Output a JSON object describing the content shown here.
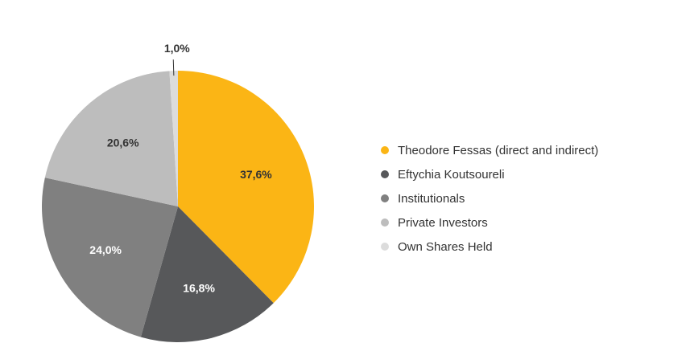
{
  "chart_data": {
    "type": "pie",
    "title": "",
    "slices": [
      {
        "label": "Theodore Fessas (direct and indirect)",
        "value": 37.6,
        "value_label": "37,6%",
        "color": "#fbb515",
        "label_color": "#333333"
      },
      {
        "label": "Eftychia Koutsoureli",
        "value": 16.8,
        "value_label": "16,8%",
        "color": "#57585a",
        "label_color": "#ffffff"
      },
      {
        "label": "Institutionals",
        "value": 24.0,
        "value_label": "24,0%",
        "color": "#808080",
        "label_color": "#ffffff"
      },
      {
        "label": "Private Investors",
        "value": 20.6,
        "value_label": "20,6%",
        "color": "#bdbdbd",
        "label_color": "#333333"
      },
      {
        "label": "Own Shares Held",
        "value": 1.0,
        "value_label": "1,0%",
        "color": "#dcdcdc",
        "label_color": "#333333"
      }
    ],
    "legend_position": "right",
    "start_angle": "12 o'clock, clockwise"
  }
}
